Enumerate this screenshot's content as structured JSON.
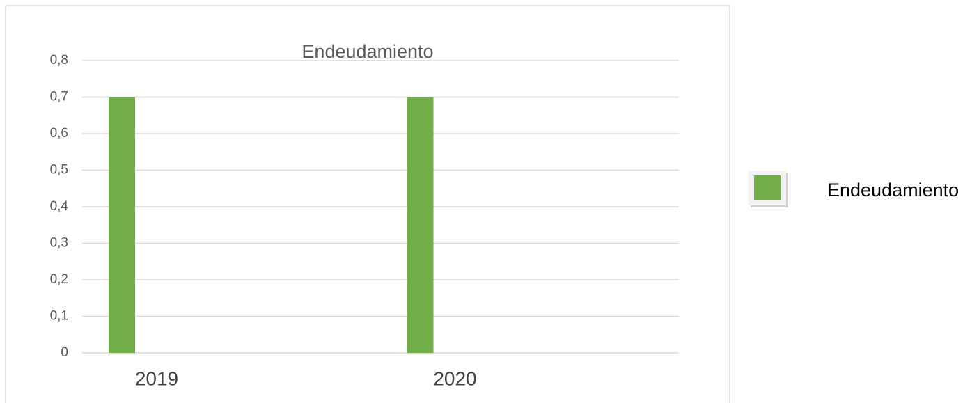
{
  "chart_data": {
    "type": "bar",
    "title": "Endeudamiento",
    "categories": [
      "2019",
      "2020"
    ],
    "series": [
      {
        "name": "Endeudamiento",
        "color": "#70ad47",
        "values": [
          0.7,
          0.7
        ]
      }
    ],
    "ylim": [
      0,
      0.8
    ],
    "yticks": [
      0,
      {
        "value": 0.1,
        "label": "0,1"
      },
      {
        "value": 0.2,
        "label": "0,2"
      },
      {
        "value": 0.3,
        "label": "0,3"
      },
      {
        "value": 0.4,
        "label": "0,4"
      },
      {
        "value": 0.5,
        "label": "0,5"
      },
      {
        "value": 0.6,
        "label": "0,6"
      },
      {
        "value": 0.7,
        "label": "0,7"
      },
      {
        "value": 0.8,
        "label": "0,8"
      }
    ],
    "grid": true,
    "legend": "right"
  }
}
